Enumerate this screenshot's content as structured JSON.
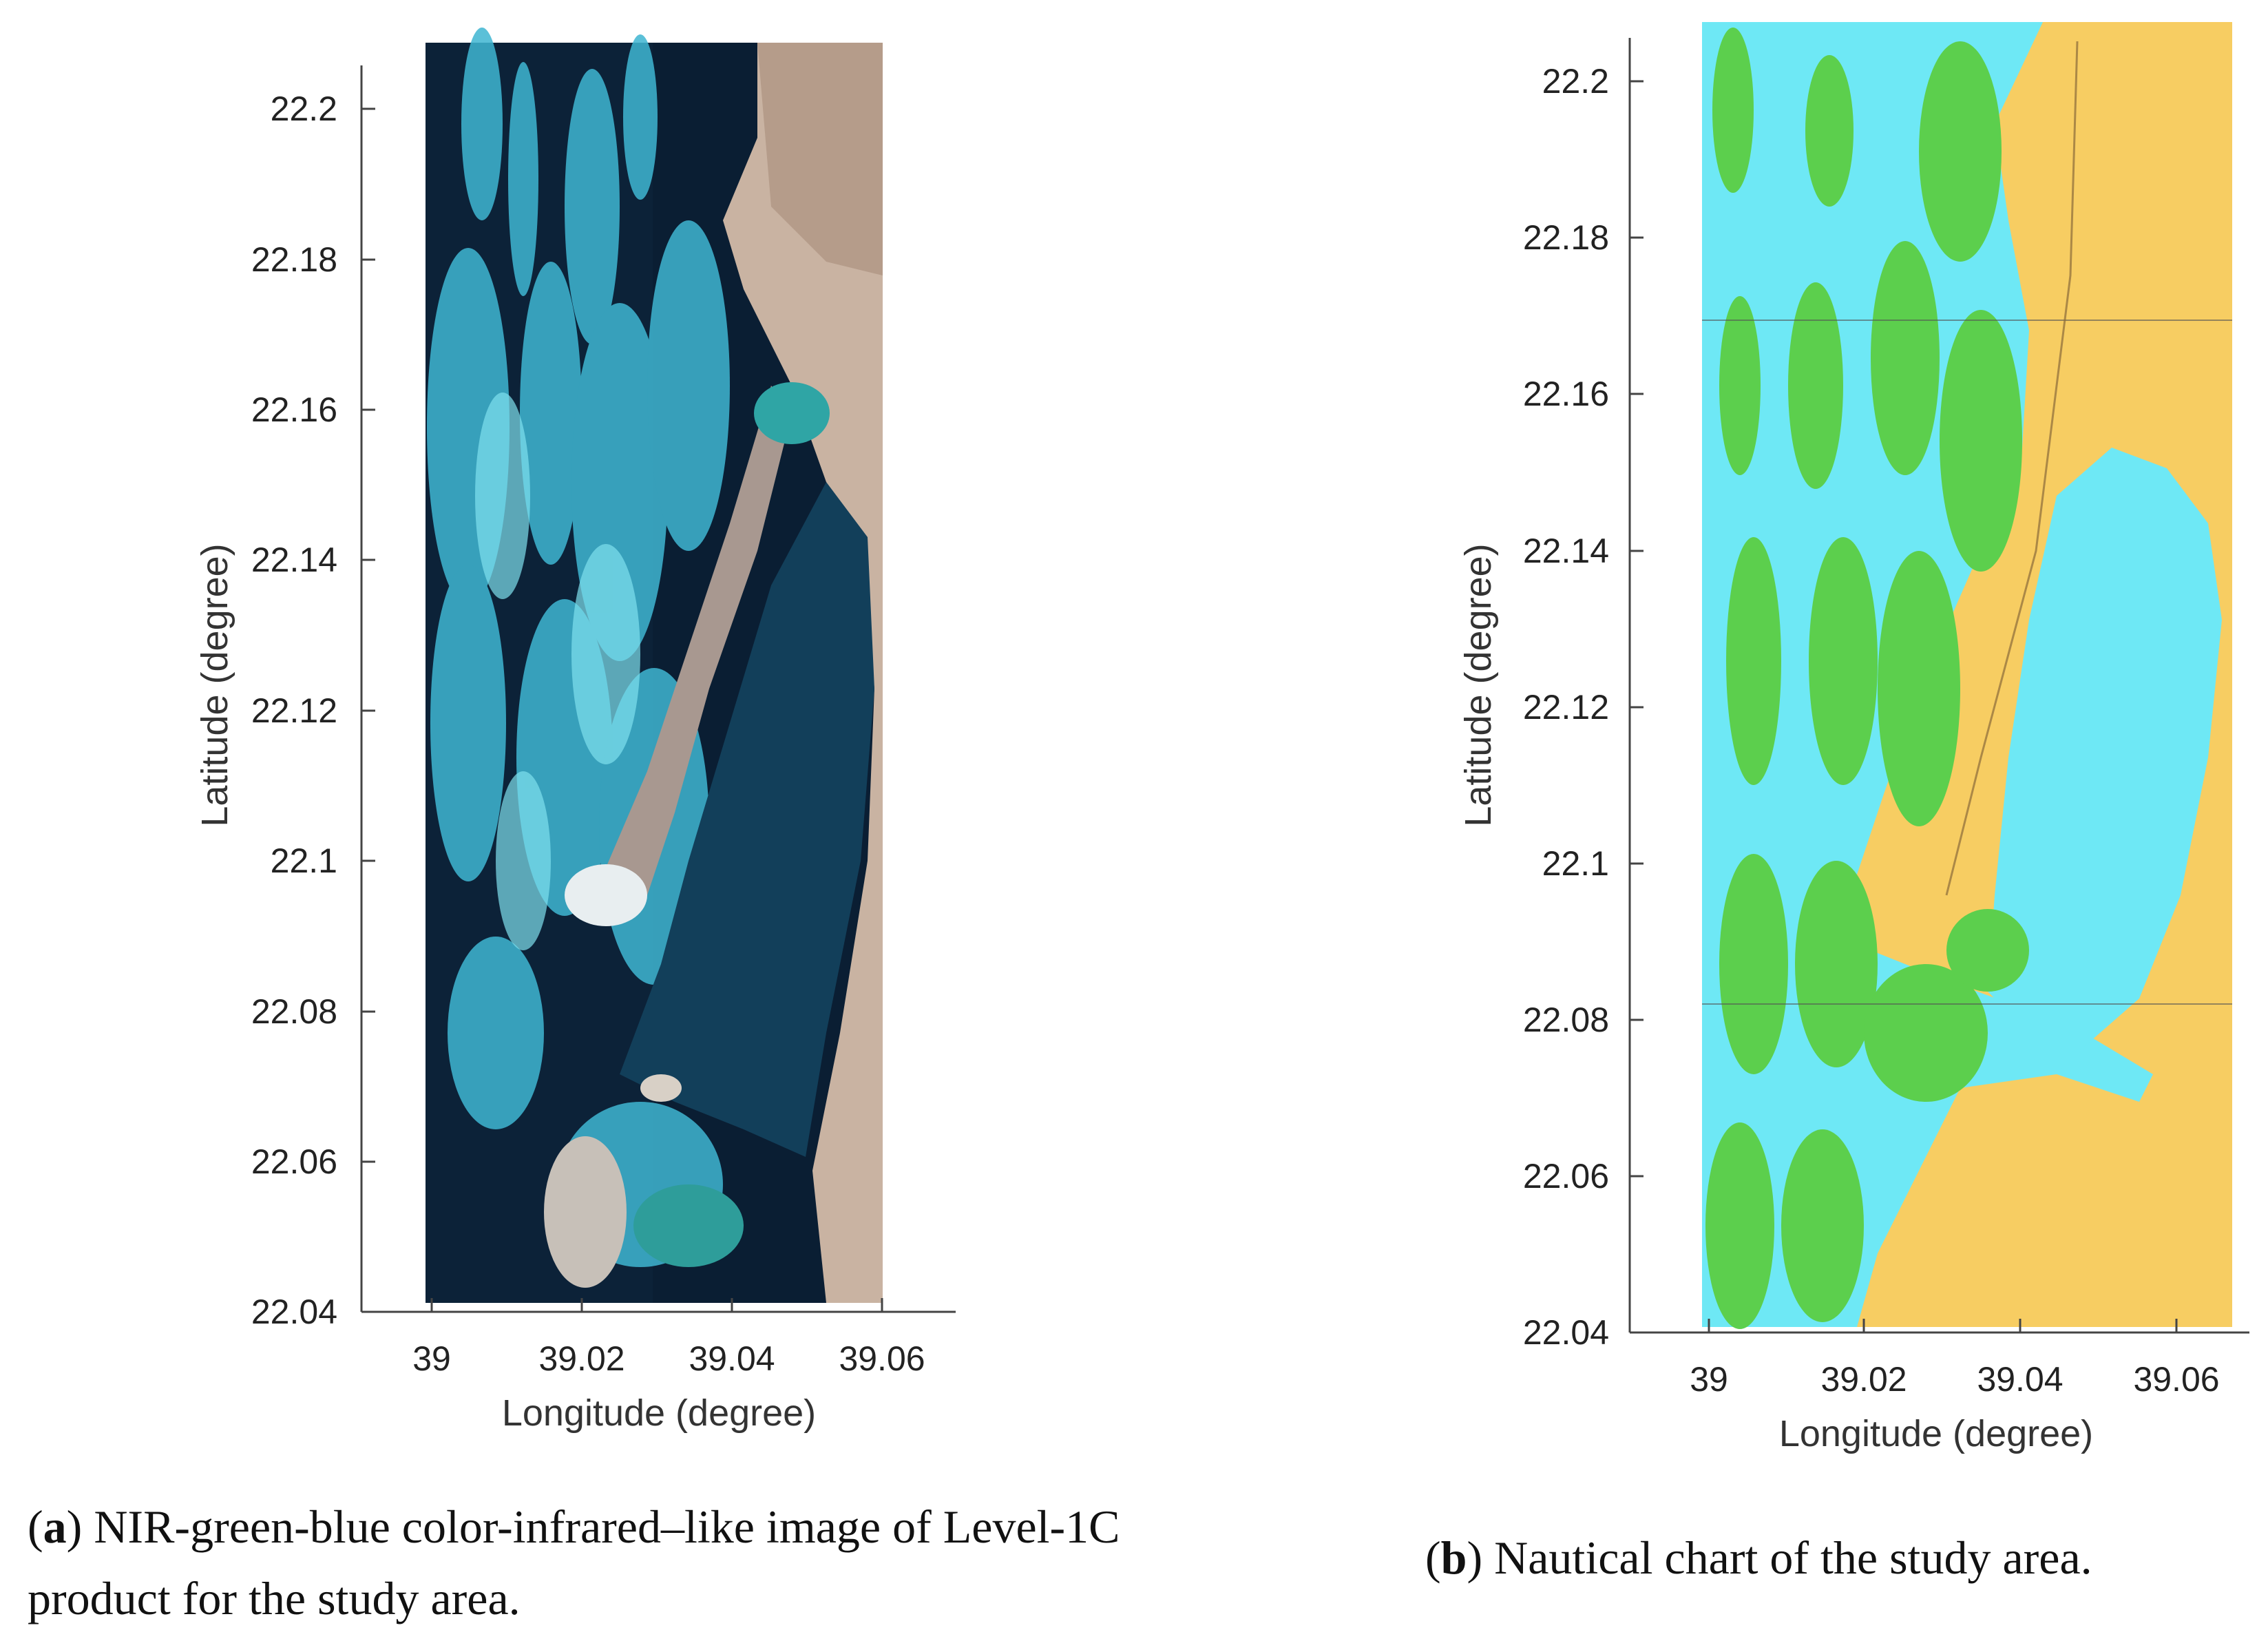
{
  "panel_a": {
    "xlabel": "Longitude (degree)",
    "ylabel": "Latitude (degree)",
    "x_ticks": [
      "39",
      "39.02",
      "39.04",
      "39.06"
    ],
    "y_ticks": [
      "22.2",
      "22.18",
      "22.16",
      "22.14",
      "22.12",
      "22.1",
      "22.08",
      "22.06",
      "22.04"
    ],
    "caption_letter": "a",
    "caption_text": "NIR-green-blue color-infrared–like image of Level-1C product for the study area."
  },
  "panel_b": {
    "xlabel": "Longitude (degree)",
    "ylabel": "Latitude (degree)",
    "x_ticks": [
      "39",
      "39.02",
      "39.04",
      "39.06"
    ],
    "y_ticks": [
      "22.2",
      "22.18",
      "22.16",
      "22.14",
      "22.12",
      "22.1",
      "22.08",
      "22.06",
      "22.04"
    ],
    "caption_letter": "b",
    "caption_text": "Nautical chart of the study area."
  },
  "colors": {
    "deep_water": "#0a1e33",
    "lagoon_water": "#123f5a",
    "reef_cyan": "#3fb6d2",
    "land_sat": "#c9b3a2",
    "chart_water": "#6ee8f5",
    "chart_reef": "#5ccf4d",
    "chart_land": "#f7cd62"
  }
}
